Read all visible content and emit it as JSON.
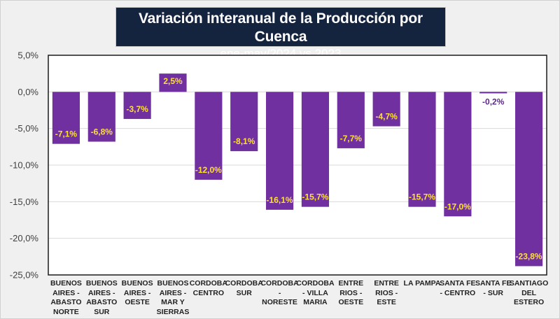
{
  "chart_data": {
    "type": "bar",
    "title": "Variación interanual de la Producción por Cuenca",
    "subtitle": "ene-may/2024 vs 2023",
    "xlabel": "",
    "ylabel": "",
    "ylim": [
      -25,
      5
    ],
    "ytick_values": [
      5,
      0,
      -5,
      -10,
      -15,
      -20,
      -25
    ],
    "ytick_labels": [
      "5,0%",
      "0,0%",
      "-5,0%",
      "-10,0%",
      "-15,0%",
      "-20,0%",
      "-25,0%"
    ],
    "grid": true,
    "legend": "none",
    "categories": [
      "BUENOS AIRES - ABASTO NORTE",
      "BUENOS AIRES - ABASTO SUR",
      "BUENOS AIRES - OESTE",
      "BUENOS AIRES - MAR Y SIERRAS",
      "CORDOBA CENTRO",
      "CORDOBA SUR",
      "CORDOBA - NORESTE",
      "CORDOBA - VILLA MARIA",
      "ENTRE RIOS - OESTE",
      "ENTRE RIOS - ESTE",
      "LA PAMPA",
      "SANTA FE - CENTRO",
      "SANTA FE - SUR",
      "SANTIAGO DEL ESTERO"
    ],
    "category_lines": [
      [
        "BUENOS",
        "AIRES -",
        "ABASTO",
        "NORTE"
      ],
      [
        "BUENOS",
        "AIRES -",
        "ABASTO",
        "SUR"
      ],
      [
        "BUENOS",
        "AIRES -",
        "OESTE"
      ],
      [
        "BUENOS",
        "AIRES -",
        "MAR Y",
        "SIERRAS"
      ],
      [
        "CORDOBA",
        "CENTRO"
      ],
      [
        "CORDOBA",
        "SUR"
      ],
      [
        "CORDOBA",
        "- NORESTE"
      ],
      [
        "CORDOBA",
        "- VILLA",
        "MARIA"
      ],
      [
        "ENTRE",
        "RIOS -",
        "OESTE"
      ],
      [
        "ENTRE",
        "RIOS -",
        "ESTE"
      ],
      [
        "LA PAMPA"
      ],
      [
        "SANTA FE",
        "- CENTRO"
      ],
      [
        "SANTA FE",
        "- SUR"
      ],
      [
        "SANTIAGO",
        "DEL",
        "ESTERO"
      ]
    ],
    "values": [
      -7.1,
      -6.8,
      -3.7,
      2.5,
      -12.0,
      -8.1,
      -16.1,
      -15.7,
      -7.7,
      -4.7,
      -15.7,
      -17.0,
      -0.2,
      -23.8
    ],
    "data_labels": [
      "-7,1%",
      "-6,8%",
      "-3,7%",
      "2,5%",
      "-12,0%",
      "-8,1%",
      "-16,1%",
      "-15,7%",
      "-7,7%",
      "-4,7%",
      "-15,7%",
      "-17,0%",
      "-0,2%",
      "-23,8%"
    ],
    "colors": {
      "bar": "#7030a0",
      "label_inside": "#ffe033",
      "label_outside": "#5b2a86",
      "title_bg": "#14243f",
      "grid": "#d9d9d9",
      "axis": "#1a1a1a"
    }
  }
}
